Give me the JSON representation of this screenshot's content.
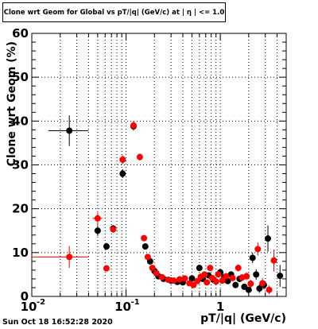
{
  "chart_data": {
    "type": "scatter",
    "title": "Clone wrt Geom for Global vs pT/|q| (GeV/c) at | η | <= 1.0",
    "xlabel": "pT/|q| (GeV/c)",
    "ylabel": "Clone wrt Geom (%)",
    "xscale": "log",
    "xlim": [
      0.01,
      5.0
    ],
    "ylim": [
      0,
      60
    ],
    "y_ticks": [
      "0",
      "10",
      "20",
      "30",
      "40",
      "50",
      "60"
    ],
    "x_ticks": [
      {
        "base": "10",
        "exp": "-2"
      },
      {
        "base": "10",
        "exp": "-1"
      },
      {
        "base": "1",
        "exp": ""
      }
    ],
    "grid": true,
    "series": [
      {
        "color": "#000000",
        "points": [
          {
            "x": 0.025,
            "y": 37.8,
            "xerr": [
              0.015,
              0.04
            ],
            "yerr": 3.5
          },
          {
            "x": 0.05,
            "y": 15.0,
            "xerr": [
              0.046,
              0.054
            ],
            "yerr": 1.2
          },
          {
            "x": 0.062,
            "y": 11.4,
            "yerr": 0.8
          },
          {
            "x": 0.073,
            "y": 15.5,
            "yerr": 0.8
          },
          {
            "x": 0.092,
            "y": 28.0,
            "yerr": 1.0
          },
          {
            "x": 0.12,
            "y": 38.8,
            "yerr": 1.0
          },
          {
            "x": 0.16,
            "y": 11.4,
            "yerr": 0.6
          },
          {
            "x": 0.18,
            "y": 8.0,
            "yerr": 0.5
          },
          {
            "x": 0.2,
            "y": 5.8,
            "yerr": 0.5
          },
          {
            "x": 0.22,
            "y": 4.6,
            "yerr": 0.4
          },
          {
            "x": 0.25,
            "y": 4.0,
            "yerr": 0.4
          },
          {
            "x": 0.3,
            "y": 3.6,
            "yerr": 0.4
          },
          {
            "x": 0.35,
            "y": 3.3,
            "yerr": 0.4
          },
          {
            "x": 0.4,
            "y": 3.2,
            "yerr": 0.4
          },
          {
            "x": 0.5,
            "y": 4.1,
            "yerr": 0.5
          },
          {
            "x": 0.6,
            "y": 6.5,
            "yerr": 0.6
          },
          {
            "x": 0.65,
            "y": 4.0,
            "yerr": 0.5
          },
          {
            "x": 0.75,
            "y": 4.8,
            "yerr": 0.5
          },
          {
            "x": 0.85,
            "y": 3.8,
            "yerr": 0.5
          },
          {
            "x": 1.0,
            "y": 5.5,
            "yerr": 0.6
          },
          {
            "x": 1.1,
            "y": 4.4,
            "yerr": 0.6
          },
          {
            "x": 1.2,
            "y": 3.5,
            "yerr": 0.6
          },
          {
            "x": 1.3,
            "y": 5.0,
            "yerr": 0.7
          },
          {
            "x": 1.45,
            "y": 2.6,
            "yerr": 0.6
          },
          {
            "x": 1.6,
            "y": 4.0,
            "yerr": 0.7
          },
          {
            "x": 1.8,
            "y": 2.2,
            "yerr": 0.7
          },
          {
            "x": 2.0,
            "y": 1.5,
            "yerr": 0.7
          },
          {
            "x": 2.2,
            "y": 8.8,
            "yerr": 1.2
          },
          {
            "x": 2.4,
            "y": 5.0,
            "yerr": 1.2
          },
          {
            "x": 2.6,
            "y": 1.8,
            "yerr": 1.0
          },
          {
            "x": 2.9,
            "y": 2.6,
            "yerr": 1.0
          },
          {
            "x": 3.2,
            "y": 13.2,
            "yerr": 3.0
          },
          {
            "x": 4.3,
            "y": 4.7,
            "yerr": 2.5
          }
        ]
      },
      {
        "color": "#ff0000",
        "points": [
          {
            "x": 0.025,
            "y": 9.0,
            "xerr": [
              0.01,
              0.04
            ],
            "yerr": 2.5
          },
          {
            "x": 0.05,
            "y": 17.8,
            "xerr": [
              0.044,
              0.056
            ],
            "yerr": 1.3
          },
          {
            "x": 0.062,
            "y": 6.4,
            "yerr": 0.7
          },
          {
            "x": 0.073,
            "y": 15.3,
            "yerr": 0.8
          },
          {
            "x": 0.092,
            "y": 31.2,
            "yerr": 1.0
          },
          {
            "x": 0.12,
            "y": 39.0,
            "yerr": 1.0
          },
          {
            "x": 0.14,
            "y": 31.8,
            "yerr": 0.8
          },
          {
            "x": 0.155,
            "y": 13.3,
            "yerr": 0.6
          },
          {
            "x": 0.17,
            "y": 9.0,
            "yerr": 0.5
          },
          {
            "x": 0.19,
            "y": 6.5,
            "yerr": 0.5
          },
          {
            "x": 0.21,
            "y": 5.3,
            "yerr": 0.5
          },
          {
            "x": 0.24,
            "y": 4.4,
            "yerr": 0.4
          },
          {
            "x": 0.28,
            "y": 3.8,
            "yerr": 0.4
          },
          {
            "x": 0.32,
            "y": 3.6,
            "yerr": 0.4
          },
          {
            "x": 0.37,
            "y": 3.9,
            "yerr": 0.4
          },
          {
            "x": 0.42,
            "y": 4.1,
            "yerr": 0.4
          },
          {
            "x": 0.47,
            "y": 3.0,
            "yerr": 0.5
          },
          {
            "x": 0.52,
            "y": 2.6,
            "yerr": 0.5
          },
          {
            "x": 0.57,
            "y": 3.5,
            "yerr": 0.5
          },
          {
            "x": 0.62,
            "y": 4.5,
            "yerr": 0.5
          },
          {
            "x": 0.68,
            "y": 5.0,
            "yerr": 0.5
          },
          {
            "x": 0.72,
            "y": 3.2,
            "yerr": 0.5
          },
          {
            "x": 0.78,
            "y": 6.5,
            "yerr": 0.6
          },
          {
            "x": 0.82,
            "y": 4.2,
            "yerr": 0.5
          },
          {
            "x": 0.9,
            "y": 3.4,
            "yerr": 0.6
          },
          {
            "x": 0.95,
            "y": 5.0,
            "yerr": 0.6
          },
          {
            "x": 1.05,
            "y": 3.6,
            "yerr": 0.6
          },
          {
            "x": 1.15,
            "y": 4.6,
            "yerr": 0.7
          },
          {
            "x": 1.35,
            "y": 4.2,
            "yerr": 0.7
          },
          {
            "x": 1.55,
            "y": 6.5,
            "yerr": 0.8
          },
          {
            "x": 1.7,
            "y": 4.3,
            "yerr": 0.8
          },
          {
            "x": 1.9,
            "y": 4.6,
            "yerr": 0.9
          },
          {
            "x": 2.1,
            "y": 2.9,
            "yerr": 0.9
          },
          {
            "x": 2.5,
            "y": 10.8,
            "yerr": 1.5
          },
          {
            "x": 2.8,
            "y": 3.0,
            "yerr": 1.2
          },
          {
            "x": 3.3,
            "y": 1.5,
            "yerr": 1.0
          },
          {
            "x": 3.7,
            "y": 8.2,
            "yerr": 2.5
          }
        ]
      }
    ]
  },
  "footer": {
    "timestamp": "Sun Oct 18 16:52:28 2020"
  }
}
